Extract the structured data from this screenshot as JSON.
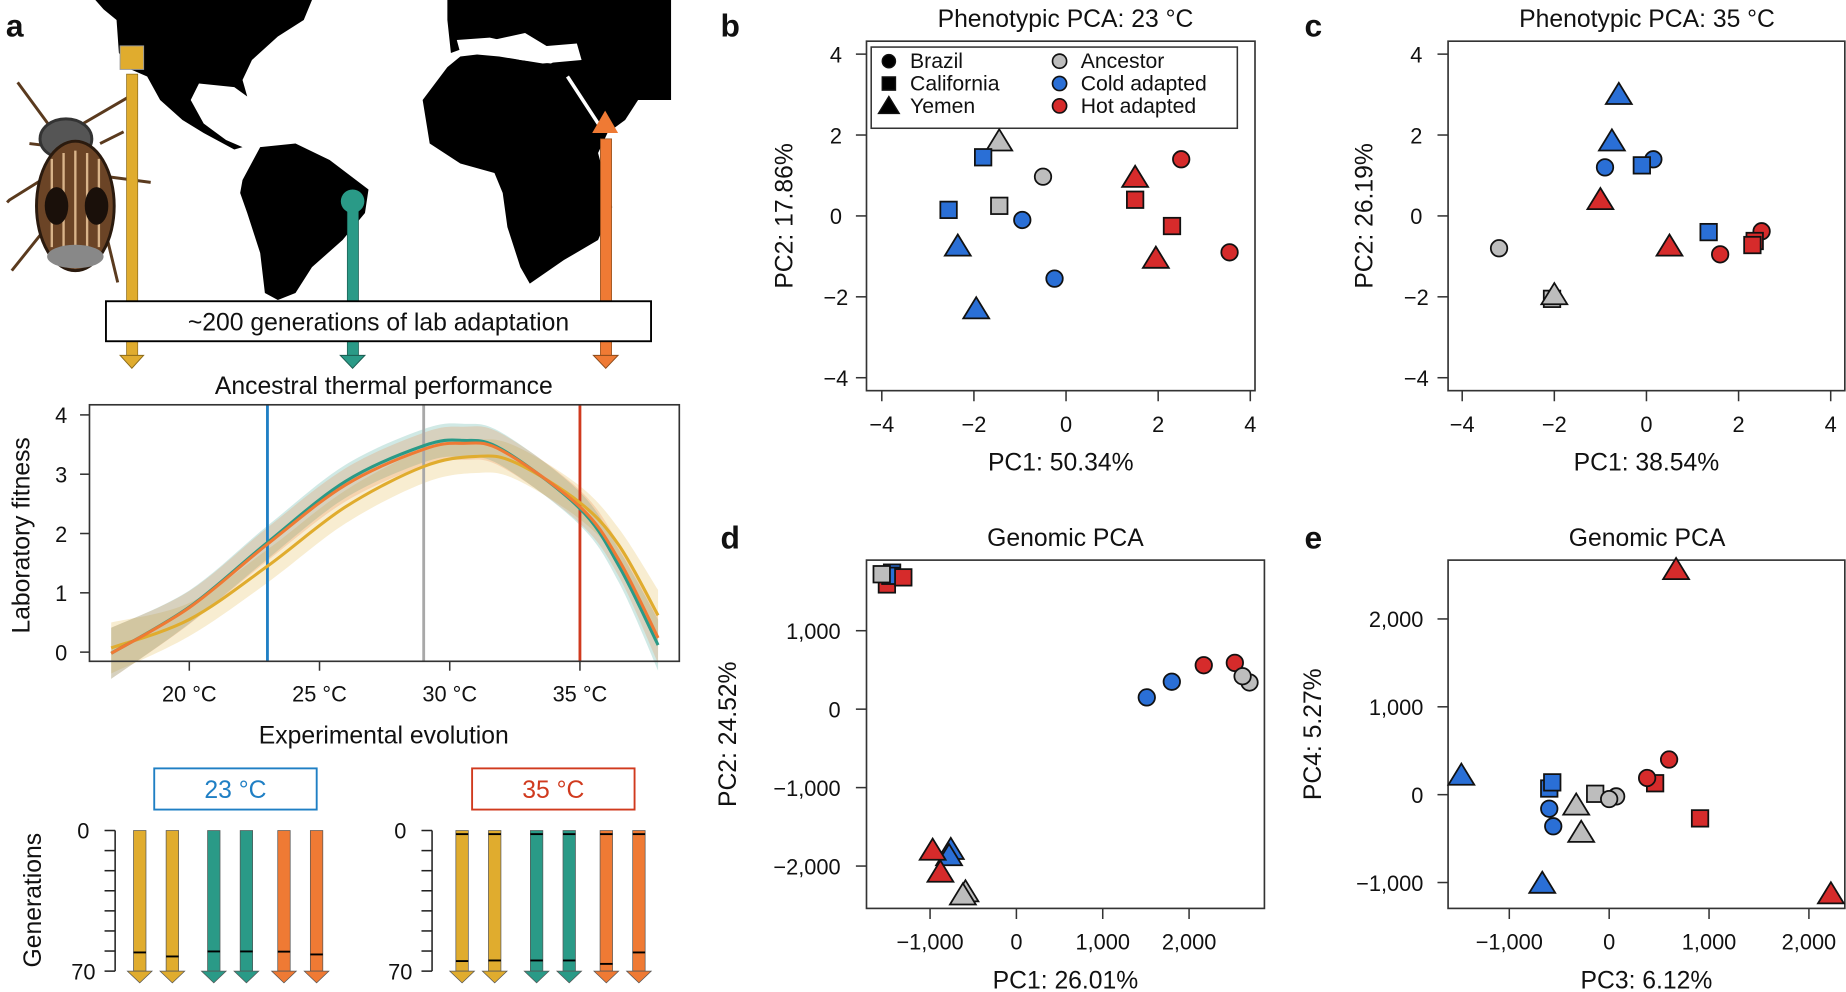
{
  "panel_labels": {
    "a": "a",
    "b": "b",
    "c": "c",
    "d": "d",
    "e": "e"
  },
  "colors": {
    "ancestor": "#bdbdbd",
    "cold": "#2a6fd6",
    "hot": "#d62b2b",
    "brazil": "#2a9a87",
    "california": "#e0ac2e",
    "yemen": "#ef7a34",
    "t23": "#1f7fc4",
    "t35": "#d03a1e",
    "t29": "#a8a8a8"
  },
  "panel_a": {
    "lab_box": "~200 generations of lab adaptation",
    "evolution_box_23": "23 °C",
    "evolution_box_35": "35 °C"
  },
  "chart_data": [
    {
      "id": "thermal",
      "type": "line",
      "title": "Ancestral thermal performance",
      "xlabel": "Experimental evolution",
      "ylabel": "Laboratory fitness",
      "ylim": [
        0,
        4
      ],
      "xticks": [
        {
          "v": 20,
          "label": "20 °C"
        },
        {
          "v": 25,
          "label": "25 °C"
        },
        {
          "v": 30,
          "label": "30 °C"
        },
        {
          "v": 35,
          "label": "35 °C"
        }
      ],
      "yticks": [
        {
          "v": 0,
          "label": "0"
        },
        {
          "v": 1,
          "label": "1"
        },
        {
          "v": 2,
          "label": "2"
        },
        {
          "v": 3,
          "label": "3"
        },
        {
          "v": 4,
          "label": "4"
        }
      ],
      "vlines": [
        {
          "x": 23,
          "color": "t23"
        },
        {
          "x": 29,
          "color": "t29"
        },
        {
          "x": 35,
          "color": "t35"
        }
      ],
      "series": [
        {
          "name": "California",
          "color": "california",
          "x": [
            17,
            20,
            23,
            26,
            29,
            31,
            32.5,
            35,
            36.5,
            38
          ],
          "y": [
            0.07,
            0.55,
            1.45,
            2.45,
            3.13,
            3.3,
            3.2,
            2.52,
            1.8,
            0.62
          ]
        },
        {
          "name": "Brazil",
          "color": "brazil",
          "x": [
            17,
            20,
            23,
            26,
            29,
            30.5,
            32,
            35,
            36.5,
            38
          ],
          "y": [
            -0.02,
            0.76,
            1.85,
            2.88,
            3.48,
            3.57,
            3.42,
            2.42,
            1.45,
            0.12
          ]
        },
        {
          "name": "Yemen",
          "color": "yemen",
          "x": [
            17,
            20,
            23,
            26,
            29,
            30.5,
            32,
            35,
            36.5,
            38
          ],
          "y": [
            -0.02,
            0.75,
            1.82,
            2.82,
            3.42,
            3.52,
            3.4,
            2.45,
            1.55,
            0.24
          ]
        }
      ]
    },
    {
      "id": "generations",
      "type": "bar",
      "ylabel": "Generations",
      "ylim": [
        0,
        70
      ],
      "yticks": [
        {
          "v": 0,
          "label": "0"
        },
        {
          "v": 70,
          "label": "70"
        }
      ],
      "groups": [
        {
          "temperature": "23 °C",
          "lines": [
            {
              "pop": "California",
              "marks": [
                60.7
              ]
            },
            {
              "pop": "California",
              "marks": [
                62.7
              ]
            },
            {
              "pop": "Brazil",
              "marks": [
                60.2
              ]
            },
            {
              "pop": "Brazil",
              "marks": [
                60.2
              ]
            },
            {
              "pop": "Yemen",
              "marks": [
                60.3
              ]
            },
            {
              "pop": "Yemen",
              "marks": [
                61.7
              ]
            }
          ]
        },
        {
          "temperature": "35 °C",
          "lines": [
            {
              "pop": "California",
              "marks": [
                1.8,
                65
              ]
            },
            {
              "pop": "California",
              "marks": [
                1.8,
                64.7
              ]
            },
            {
              "pop": "Brazil",
              "marks": [
                1.8,
                64.7
              ]
            },
            {
              "pop": "Brazil",
              "marks": [
                1.8,
                64.7
              ]
            },
            {
              "pop": "Yemen",
              "marks": [
                1.8,
                66.4
              ]
            },
            {
              "pop": "Yemen",
              "marks": [
                1.8,
                60.7
              ]
            }
          ]
        }
      ]
    },
    {
      "id": "b",
      "type": "scatter",
      "title": "Phenotypic PCA: 23 °C",
      "xlabel": "PC1: 50.34%",
      "ylabel": "PC2: 17.86%",
      "xlim": [
        -4.4,
        4.4
      ],
      "ylim": [
        -4.3,
        4.4
      ],
      "xticks": [
        {
          "v": -4,
          "label": "−4"
        },
        {
          "v": -2,
          "label": "−2"
        },
        {
          "v": 0,
          "label": "0"
        },
        {
          "v": 2,
          "label": "2"
        },
        {
          "v": 4,
          "label": "4"
        }
      ],
      "yticks": [
        {
          "v": -4,
          "label": "−4"
        },
        {
          "v": -2,
          "label": "−2"
        },
        {
          "v": 0,
          "label": "0"
        },
        {
          "v": 2,
          "label": "2"
        },
        {
          "v": 4,
          "label": "4"
        }
      ],
      "legend": {
        "placement": "top",
        "shapes": [
          {
            "label": "Brazil",
            "shape": "circle"
          },
          {
            "label": "California",
            "shape": "square"
          },
          {
            "label": "Yemen",
            "shape": "triangle"
          }
        ],
        "colors": [
          {
            "label": "Ancestor",
            "group": "ancestor"
          },
          {
            "label": "Cold adapted",
            "group": "cold"
          },
          {
            "label": "Hot adapted",
            "group": "hot"
          }
        ]
      },
      "points": [
        {
          "pop": "Yemen",
          "group": "ancestor",
          "x": -1.45,
          "y": 1.85
        },
        {
          "pop": "California",
          "group": "cold",
          "x": -1.8,
          "y": 1.45
        },
        {
          "pop": "Brazil",
          "group": "ancestor",
          "x": -0.5,
          "y": 0.97
        },
        {
          "pop": "California",
          "group": "cold",
          "x": -2.55,
          "y": 0.15
        },
        {
          "pop": "California",
          "group": "ancestor",
          "x": -1.45,
          "y": 0.25
        },
        {
          "pop": "Brazil",
          "group": "cold",
          "x": -0.95,
          "y": -0.1
        },
        {
          "pop": "Yemen",
          "group": "cold",
          "x": -2.35,
          "y": -0.75
        },
        {
          "pop": "Brazil",
          "group": "cold",
          "x": -0.25,
          "y": -1.55
        },
        {
          "pop": "Yemen",
          "group": "cold",
          "x": -1.95,
          "y": -2.3
        },
        {
          "pop": "Yemen",
          "group": "hot",
          "x": 1.5,
          "y": 0.95
        },
        {
          "pop": "Brazil",
          "group": "hot",
          "x": 2.5,
          "y": 1.4
        },
        {
          "pop": "California",
          "group": "hot",
          "x": 1.5,
          "y": 0.4
        },
        {
          "pop": "California",
          "group": "hot",
          "x": 2.3,
          "y": -0.25
        },
        {
          "pop": "Yemen",
          "group": "hot",
          "x": 1.95,
          "y": -1.05
        },
        {
          "pop": "Brazil",
          "group": "hot",
          "x": 3.55,
          "y": -0.9
        }
      ]
    },
    {
      "id": "c",
      "type": "scatter",
      "title": "Phenotypic PCA: 35 °C",
      "xlabel": "PC1: 38.54%",
      "ylabel": "PC2: 26.19%",
      "xlim": [
        -4.3,
        4.6
      ],
      "ylim": [
        -4.3,
        4.4
      ],
      "xticks": [
        {
          "v": -4,
          "label": "−4"
        },
        {
          "v": -2,
          "label": "−2"
        },
        {
          "v": 0,
          "label": "0"
        },
        {
          "v": 2,
          "label": "2"
        },
        {
          "v": 4,
          "label": "4"
        }
      ],
      "yticks": [
        {
          "v": -4,
          "label": "−4"
        },
        {
          "v": -2,
          "label": "−2"
        },
        {
          "v": 0,
          "label": "0"
        },
        {
          "v": 2,
          "label": "2"
        },
        {
          "v": 4,
          "label": "4"
        }
      ],
      "points": [
        {
          "pop": "Yemen",
          "group": "cold",
          "x": -0.6,
          "y": 3.0
        },
        {
          "pop": "Yemen",
          "group": "cold",
          "x": -0.75,
          "y": 1.85
        },
        {
          "pop": "Brazil",
          "group": "cold",
          "x": 0.15,
          "y": 1.4
        },
        {
          "pop": "Brazil",
          "group": "cold",
          "x": -0.9,
          "y": 1.2
        },
        {
          "pop": "California",
          "group": "cold",
          "x": -0.1,
          "y": 1.25
        },
        {
          "pop": "Yemen",
          "group": "hot",
          "x": -1.0,
          "y": 0.4
        },
        {
          "pop": "California",
          "group": "cold",
          "x": 1.35,
          "y": -0.4
        },
        {
          "pop": "Brazil",
          "group": "hot",
          "x": 2.5,
          "y": -0.38
        },
        {
          "pop": "California",
          "group": "hot",
          "x": 2.35,
          "y": -0.62
        },
        {
          "pop": "California",
          "group": "hot",
          "x": 2.3,
          "y": -0.72
        },
        {
          "pop": "Brazil",
          "group": "hot",
          "x": 1.6,
          "y": -0.95
        },
        {
          "pop": "Yemen",
          "group": "hot",
          "x": 0.5,
          "y": -0.75
        },
        {
          "pop": "Brazil",
          "group": "ancestor",
          "x": -3.2,
          "y": -0.8
        },
        {
          "pop": "California",
          "group": "ancestor",
          "x": -2.05,
          "y": -2.05
        },
        {
          "pop": "Yemen",
          "group": "ancestor",
          "x": -2.0,
          "y": -1.95
        }
      ]
    },
    {
      "id": "d",
      "type": "scatter",
      "title": "Genomic PCA",
      "xlabel": "PC1: 26.01%",
      "ylabel": "PC2: 24.52%",
      "xlim": [
        -1730,
        2870
      ],
      "ylim": [
        -2560,
        1900
      ],
      "xticks": [
        {
          "v": -1000,
          "label": "−1,000"
        },
        {
          "v": 0,
          "label": "0"
        },
        {
          "v": 1000,
          "label": "1,000"
        },
        {
          "v": 2000,
          "label": "2,000"
        }
      ],
      "yticks": [
        {
          "v": -2000,
          "label": "−2,000"
        },
        {
          "v": -1000,
          "label": "−1,000"
        },
        {
          "v": 0,
          "label": "0"
        },
        {
          "v": 1000,
          "label": "1,000"
        }
      ],
      "points": [
        {
          "pop": "California",
          "group": "hot",
          "x": -1500,
          "y": 1590
        },
        {
          "pop": "California",
          "group": "cold",
          "x": -1440,
          "y": 1740
        },
        {
          "pop": "California",
          "group": "cold",
          "x": -1460,
          "y": 1700
        },
        {
          "pop": "California",
          "group": "ancestor",
          "x": -1560,
          "y": 1720
        },
        {
          "pop": "California",
          "group": "hot",
          "x": -1310,
          "y": 1680
        },
        {
          "pop": "Brazil",
          "group": "cold",
          "x": 1510,
          "y": 150
        },
        {
          "pop": "Brazil",
          "group": "cold",
          "x": 1800,
          "y": 350
        },
        {
          "pop": "Brazil",
          "group": "hot",
          "x": 2170,
          "y": 560
        },
        {
          "pop": "Brazil",
          "group": "ancestor",
          "x": 2700,
          "y": 340
        },
        {
          "pop": "Brazil",
          "group": "hot",
          "x": 2530,
          "y": 590
        },
        {
          "pop": "Brazil",
          "group": "ancestor",
          "x": 2620,
          "y": 420
        },
        {
          "pop": "Yemen",
          "group": "cold",
          "x": -760,
          "y": -1790
        },
        {
          "pop": "Yemen",
          "group": "cold",
          "x": -780,
          "y": -1870
        },
        {
          "pop": "Yemen",
          "group": "hot",
          "x": -970,
          "y": -1800
        },
        {
          "pop": "Yemen",
          "group": "hot",
          "x": -880,
          "y": -2080
        },
        {
          "pop": "Yemen",
          "group": "ancestor",
          "x": -590,
          "y": -2330
        },
        {
          "pop": "Yemen",
          "group": "ancestor",
          "x": -620,
          "y": -2370
        }
      ]
    },
    {
      "id": "e",
      "type": "scatter",
      "title": "Genomic PCA",
      "xlabel": "PC3: 6.12%",
      "ylabel": "PC4: 5.27%",
      "xlim": [
        -1620,
        2360
      ],
      "ylim": [
        -1300,
        2660
      ],
      "xticks": [
        {
          "v": -1000,
          "label": "−1,000"
        },
        {
          "v": 0,
          "label": "0"
        },
        {
          "v": 1000,
          "label": "1,000"
        },
        {
          "v": 2000,
          "label": "2,000"
        }
      ],
      "yticks": [
        {
          "v": -1000,
          "label": "−1,000"
        },
        {
          "v": 0,
          "label": "0"
        },
        {
          "v": 1000,
          "label": "1,000"
        },
        {
          "v": 2000,
          "label": "2,000"
        }
      ],
      "points": [
        {
          "pop": "Yemen",
          "group": "hot",
          "x": 670,
          "y": 2560
        },
        {
          "pop": "Yemen",
          "group": "cold",
          "x": -1480,
          "y": 220
        },
        {
          "pop": "Yemen",
          "group": "cold",
          "x": -670,
          "y": -1010
        },
        {
          "pop": "Yemen",
          "group": "hot",
          "x": 2220,
          "y": -1130
        },
        {
          "pop": "California",
          "group": "cold",
          "x": -600,
          "y": 70
        },
        {
          "pop": "California",
          "group": "cold",
          "x": -570,
          "y": 140
        },
        {
          "pop": "Brazil",
          "group": "cold",
          "x": -600,
          "y": -160
        },
        {
          "pop": "Brazil",
          "group": "cold",
          "x": -560,
          "y": -360
        },
        {
          "pop": "Yemen",
          "group": "ancestor",
          "x": -330,
          "y": -120
        },
        {
          "pop": "Yemen",
          "group": "ancestor",
          "x": -280,
          "y": -430
        },
        {
          "pop": "California",
          "group": "ancestor",
          "x": -140,
          "y": 10
        },
        {
          "pop": "Brazil",
          "group": "ancestor",
          "x": 70,
          "y": -20
        },
        {
          "pop": "Brazil",
          "group": "ancestor",
          "x": 0,
          "y": -50
        },
        {
          "pop": "California",
          "group": "hot",
          "x": 460,
          "y": 130
        },
        {
          "pop": "Brazil",
          "group": "hot",
          "x": 380,
          "y": 190
        },
        {
          "pop": "Brazil",
          "group": "hot",
          "x": 600,
          "y": 400
        },
        {
          "pop": "California",
          "group": "hot",
          "x": 910,
          "y": -270
        }
      ]
    }
  ]
}
